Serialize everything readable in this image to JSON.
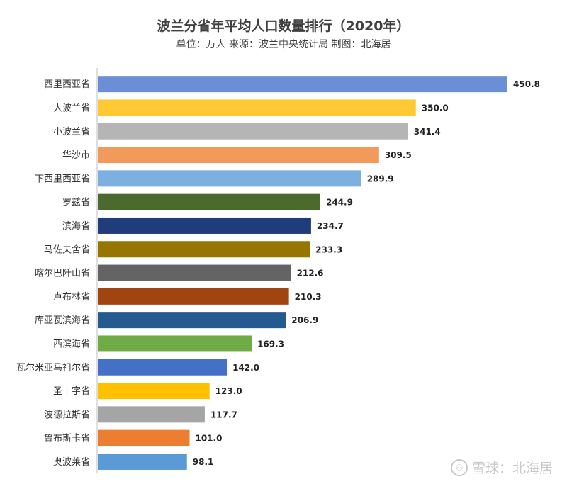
{
  "chart_data": {
    "type": "bar",
    "orientation": "horizontal",
    "title": "波兰分省年平均人口数量排行（2020年）",
    "subtitle": "单位：万人 来源：波兰中央统计局 制图：北海居",
    "categories": [
      "西里西亚省",
      "大波兰省",
      "小波兰省",
      "华沙市",
      "下西里西亚省",
      "罗兹省",
      "滨海省",
      "马佐夫舍省",
      "喀尔巴阡山省",
      "卢布林省",
      "库亚瓦滨海省",
      "西滨海省",
      "瓦尔米亚马祖尔省",
      "圣十字省",
      "波德拉斯省",
      "鲁布斯卡省",
      "奥波莱省"
    ],
    "values": [
      450.8,
      350.0,
      341.4,
      309.5,
      289.9,
      244.9,
      234.7,
      233.3,
      212.6,
      210.3,
      206.9,
      169.3,
      142.0,
      123.0,
      117.7,
      101.0,
      98.1
    ],
    "value_labels": [
      "450.8",
      "350.0",
      "341.4",
      "309.5",
      "289.9",
      "244.9",
      "234.7",
      "233.3",
      "212.6",
      "210.3",
      "206.9",
      "169.3",
      "142.0",
      "123.0",
      "117.7",
      "101.0",
      "98.1"
    ],
    "colors": [
      "#6b8fd6",
      "#ffc933",
      "#b5b5b5",
      "#f29a5c",
      "#7cb0e0",
      "#4a6b2d",
      "#1e3d7a",
      "#967600",
      "#646464",
      "#a0450f",
      "#245a8f",
      "#6fac46",
      "#4470c8",
      "#ffc000",
      "#a5a5a5",
      "#ed7d31",
      "#5b9bd5"
    ],
    "xlabel": "",
    "ylabel": "",
    "xlim": [
      0,
      460
    ],
    "grid": false,
    "legend": "none"
  },
  "watermark": {
    "logo": "⚇",
    "text": "雪球：北海居"
  }
}
